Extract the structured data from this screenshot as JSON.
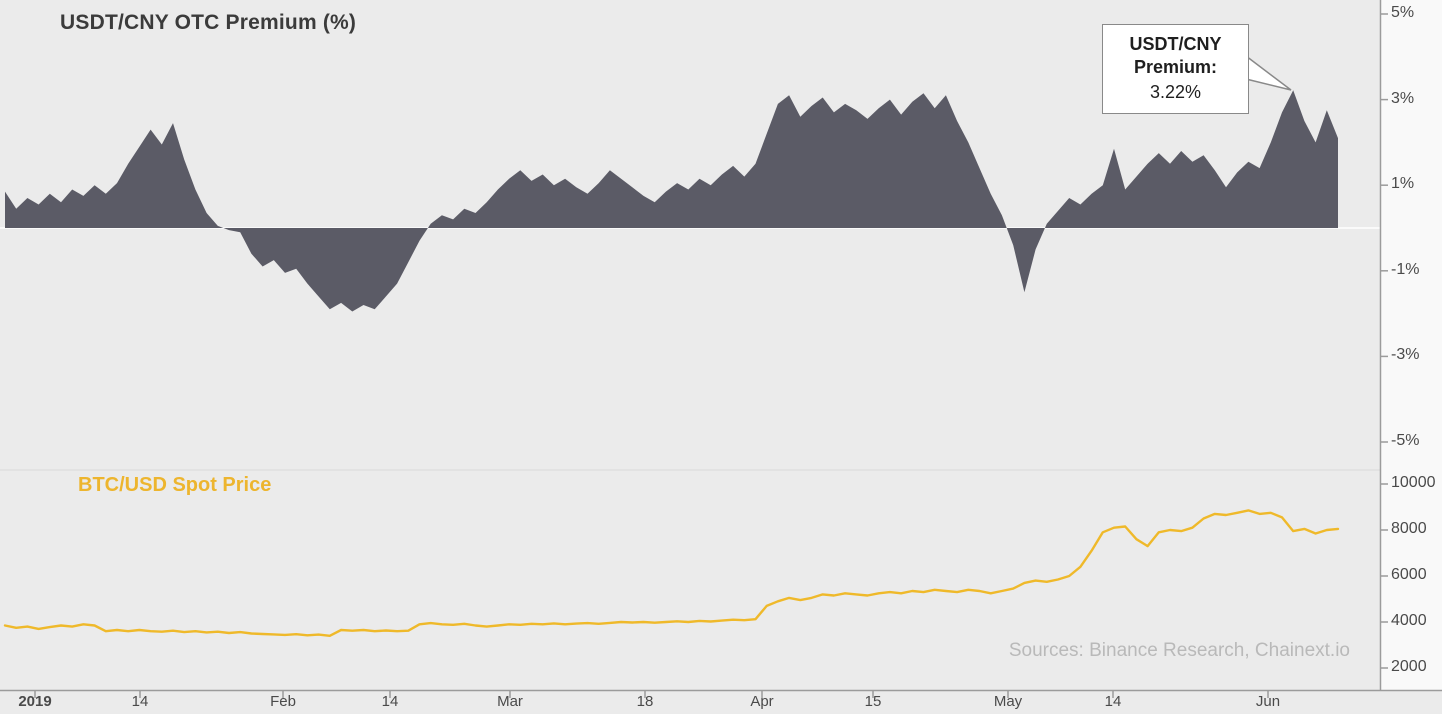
{
  "sources": "Sources: Binance Research, Chainext.io",
  "annotation": {
    "title_line1": "USDT/CNY",
    "title_line2": "Premium:",
    "value": "3.22%"
  },
  "colors": {
    "background": "#ebebeb",
    "area": "#5b5b66",
    "btc_line": "#efb92a",
    "axis": "#9b9b9b",
    "title_text": "#3b3b3b",
    "btc_title_text": "#edb52e",
    "sources_text": "#b9b9b9",
    "zero_line": "#fafafa"
  },
  "x_axis": {
    "labels": [
      "2019",
      "14",
      "Feb",
      "14",
      "Mar",
      "18",
      "Apr",
      "15",
      "May",
      "14",
      "Jun"
    ],
    "positions": [
      35,
      140,
      283,
      390,
      510,
      645,
      762,
      873,
      1008,
      1113,
      1268
    ]
  },
  "chart_data": [
    {
      "type": "area",
      "title": "USDT/CNY OTC Premium (%)",
      "series_name": "USDT/CNY Premium",
      "unit": "%",
      "ylim": [
        -5,
        5
      ],
      "yticks": [
        "5%",
        "3%",
        "1%",
        "-1%",
        "-3%",
        "-5%"
      ],
      "ytick_values": [
        5,
        3,
        1,
        -1,
        -3,
        -5
      ],
      "legend_position": "none",
      "grid": false,
      "highlight_point": {
        "label": "USDT/CNY Premium:",
        "value": 3.22
      },
      "values": [
        0.85,
        0.45,
        0.7,
        0.55,
        0.8,
        0.6,
        0.9,
        0.75,
        1.0,
        0.8,
        1.05,
        1.5,
        1.9,
        2.3,
        1.95,
        2.45,
        1.6,
        0.9,
        0.35,
        0.05,
        -0.05,
        -0.1,
        -0.6,
        -0.9,
        -0.75,
        -1.05,
        -0.95,
        -1.3,
        -1.6,
        -1.9,
        -1.75,
        -1.95,
        -1.8,
        -1.9,
        -1.6,
        -1.3,
        -0.8,
        -0.3,
        0.1,
        0.3,
        0.2,
        0.45,
        0.35,
        0.6,
        0.9,
        1.15,
        1.35,
        1.1,
        1.25,
        1.0,
        1.15,
        0.95,
        0.8,
        1.05,
        1.35,
        1.15,
        0.95,
        0.75,
        0.6,
        0.85,
        1.05,
        0.9,
        1.15,
        1.0,
        1.25,
        1.45,
        1.2,
        1.5,
        2.2,
        2.9,
        3.1,
        2.6,
        2.85,
        3.05,
        2.7,
        2.9,
        2.75,
        2.55,
        2.8,
        3.0,
        2.65,
        2.95,
        3.15,
        2.8,
        3.1,
        2.5,
        2.0,
        1.4,
        0.8,
        0.3,
        -0.4,
        -1.5,
        -0.5,
        0.1,
        0.4,
        0.7,
        0.55,
        0.8,
        1.0,
        1.85,
        0.9,
        1.2,
        1.5,
        1.75,
        1.5,
        1.8,
        1.55,
        1.7,
        1.35,
        0.95,
        1.3,
        1.55,
        1.4,
        2.0,
        2.7,
        3.22,
        2.5,
        2.0,
        2.75,
        2.1
      ]
    },
    {
      "type": "line",
      "title": "BTC/USD Spot Price",
      "series_name": "BTC/USD Spot Price",
      "unit": "USD",
      "ylim": [
        2000,
        10000
      ],
      "yticks": [
        "10000",
        "8000",
        "6000",
        "4000",
        "2000"
      ],
      "ytick_values": [
        10000,
        8000,
        6000,
        4000,
        2000
      ],
      "legend_position": "none",
      "grid": false,
      "values": [
        3850,
        3750,
        3800,
        3700,
        3780,
        3850,
        3800,
        3900,
        3850,
        3600,
        3650,
        3600,
        3650,
        3600,
        3580,
        3620,
        3560,
        3600,
        3550,
        3580,
        3520,
        3560,
        3500,
        3480,
        3460,
        3440,
        3470,
        3420,
        3450,
        3400,
        3650,
        3620,
        3650,
        3600,
        3630,
        3600,
        3620,
        3900,
        3950,
        3900,
        3880,
        3920,
        3850,
        3800,
        3850,
        3900,
        3880,
        3920,
        3900,
        3940,
        3900,
        3930,
        3950,
        3920,
        3960,
        4000,
        3980,
        4000,
        3970,
        4000,
        4030,
        4000,
        4050,
        4020,
        4060,
        4100,
        4080,
        4120,
        4700,
        4900,
        5050,
        4950,
        5050,
        5200,
        5150,
        5250,
        5200,
        5150,
        5250,
        5300,
        5250,
        5350,
        5300,
        5400,
        5350,
        5300,
        5400,
        5350,
        5250,
        5350,
        5450,
        5700,
        5800,
        5750,
        5850,
        6000,
        6400,
        7100,
        7900,
        8100,
        8150,
        7600,
        7300,
        7900,
        8000,
        7950,
        8100,
        8500,
        8700,
        8650,
        8750,
        8850,
        8700,
        8750,
        8550,
        7950,
        8050,
        7850,
        8000,
        8050
      ]
    }
  ]
}
